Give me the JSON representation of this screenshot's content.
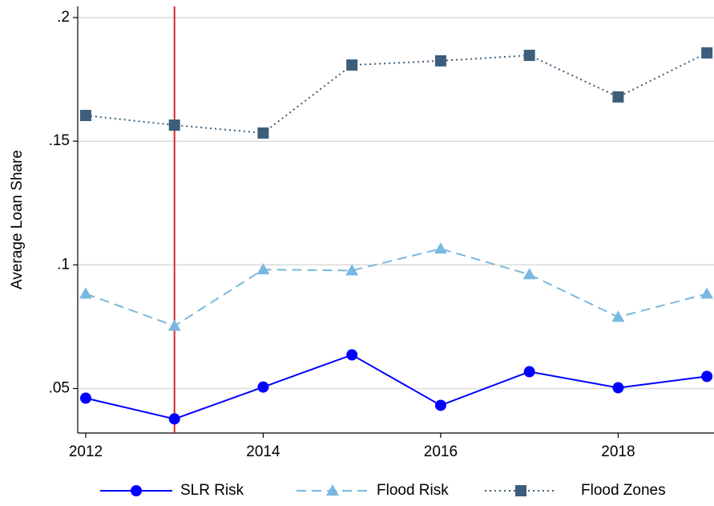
{
  "chart_data": {
    "type": "line",
    "y_label": "Average Loan Share",
    "x": [
      2012,
      2013,
      2014,
      2015,
      2016,
      2017,
      2018,
      2019
    ],
    "series": [
      {
        "name": "SLR Risk",
        "color": "#0000ff",
        "marker": "circle",
        "dash": "solid",
        "values": [
          0.0461,
          0.0377,
          0.0506,
          0.0636,
          0.0432,
          0.0568,
          0.0503,
          0.0549
        ]
      },
      {
        "name": "Flood Risk",
        "color": "#7ab8e0",
        "marker": "triangle",
        "dash": "dashed",
        "values": [
          0.0883,
          0.0753,
          0.0981,
          0.0977,
          0.1065,
          0.0961,
          0.0789,
          0.0883
        ]
      },
      {
        "name": "Flood Zones",
        "color": "#3c5e7a",
        "marker": "square",
        "dash": "dotted",
        "values": [
          0.1604,
          0.1565,
          0.1533,
          0.1808,
          0.1825,
          0.1847,
          0.1679,
          0.1857
        ]
      }
    ],
    "xlim": [
      2011.91,
      2019.08
    ],
    "xticks": [
      2012,
      2014,
      2016,
      2018
    ],
    "ylim": [
      0.032,
      0.2045
    ],
    "yticks": [
      {
        "value": 0.05,
        "label": ".05"
      },
      {
        "value": 0.1,
        "label": ".1"
      },
      {
        "value": 0.15,
        "label": ".15"
      },
      {
        "value": 0.2,
        "label": ".2"
      }
    ],
    "grid": true,
    "vline": {
      "x": 2013,
      "color": "#d62728"
    },
    "legend": "bottom"
  }
}
